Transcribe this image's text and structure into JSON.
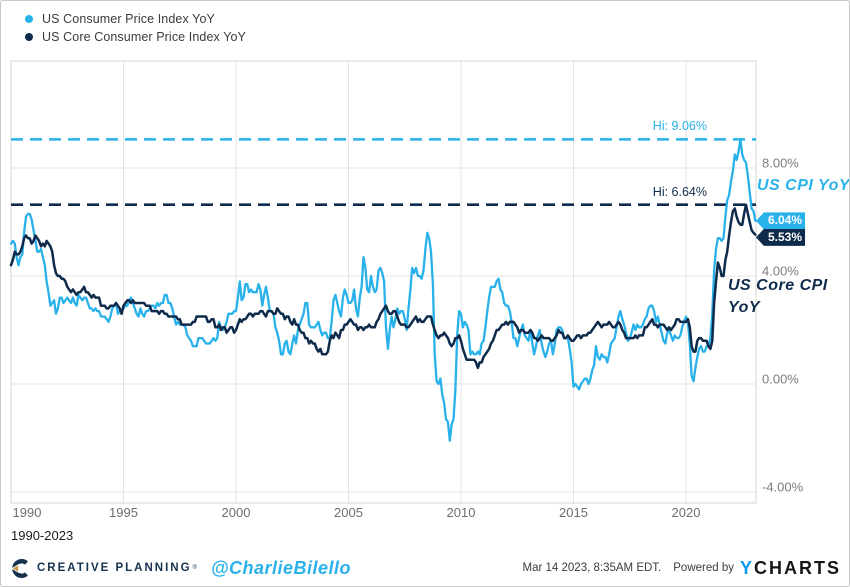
{
  "legend": {
    "items": [
      {
        "label": "US Consumer Price Index YoY",
        "color": "#29b1ea"
      },
      {
        "label": "US Core Consumer Price Index YoY",
        "color": "#0f2b4c"
      }
    ]
  },
  "chart_data": {
    "type": "line",
    "grid": true,
    "x_range": [
      1990,
      2023.17
    ],
    "y_range": [
      -4.3,
      12
    ],
    "x_ticks": [
      {
        "label": "1990",
        "value": 1990
      },
      {
        "label": "1995",
        "value": 1995
      },
      {
        "label": "2000",
        "value": 2000
      },
      {
        "label": "2005",
        "value": 2005
      },
      {
        "label": "2010",
        "value": 2010
      },
      {
        "label": "2015",
        "value": 2015
      },
      {
        "label": "2020",
        "value": 2020
      }
    ],
    "y_ticks": [
      {
        "label": "8.00%",
        "value": 8
      },
      {
        "label": "4.00%",
        "value": 4
      },
      {
        "label": "0.00%",
        "value": 0
      },
      {
        "label": "-4.00%",
        "value": -4
      }
    ],
    "hi_lines": [
      {
        "label": "Hi: 9.06%",
        "value": 9.06,
        "color": "#29b1ea"
      },
      {
        "label": "Hi: 6.64%",
        "value": 6.64,
        "color": "#0f2b4c"
      }
    ],
    "end_labels": [
      {
        "text": "6.04%",
        "value": 6.04,
        "color": "#29b1ea"
      },
      {
        "text": "5.53%",
        "value": 5.53,
        "color": "#0f2b4c"
      }
    ],
    "annotations": {
      "cpi": "US CPI YoY",
      "core_line1": "US Core CPI",
      "core_line2": "YoY"
    },
    "series": [
      {
        "name": "US Consumer Price Index YoY",
        "color": "#29b1ea",
        "start": "1990-01",
        "freq": "monthly",
        "values": [
          5.2,
          5.3,
          5.2,
          4.7,
          4.4,
          4.7,
          4.8,
          5.6,
          6.2,
          6.3,
          6.3,
          6.1,
          5.7,
          5.3,
          4.9,
          4.9,
          5.0,
          4.7,
          4.4,
          3.8,
          3.4,
          2.9,
          3.0,
          3.1,
          2.6,
          2.8,
          3.2,
          3.2,
          3.0,
          3.1,
          3.2,
          3.1,
          3.0,
          3.2,
          3.0,
          2.9,
          3.3,
          3.2,
          3.1,
          3.2,
          3.2,
          3.0,
          2.8,
          2.8,
          2.7,
          2.8,
          2.7,
          2.7,
          2.5,
          2.5,
          2.5,
          2.4,
          2.3,
          2.5,
          2.8,
          2.9,
          3.0,
          2.6,
          2.7,
          2.7,
          2.8,
          2.9,
          2.9,
          3.1,
          3.2,
          3.0,
          2.8,
          2.6,
          2.5,
          2.8,
          2.6,
          2.5,
          2.7,
          2.7,
          2.8,
          2.9,
          2.9,
          2.8,
          3.0,
          2.9,
          3.0,
          3.0,
          3.3,
          3.3,
          3.0,
          3.0,
          2.8,
          2.5,
          2.2,
          2.3,
          2.2,
          2.2,
          2.2,
          2.1,
          1.8,
          1.7,
          1.6,
          1.4,
          1.4,
          1.4,
          1.7,
          1.7,
          1.7,
          1.6,
          1.5,
          1.5,
          1.5,
          1.6,
          1.7,
          1.6,
          1.7,
          2.3,
          2.1,
          2.0,
          2.1,
          2.3,
          2.6,
          2.6,
          2.6,
          2.7,
          2.7,
          3.2,
          3.8,
          3.1,
          3.2,
          3.7,
          3.7,
          3.4,
          3.5,
          3.4,
          3.4,
          3.4,
          3.7,
          3.5,
          2.9,
          3.3,
          3.6,
          3.2,
          2.7,
          2.7,
          2.6,
          2.1,
          1.9,
          1.6,
          1.1,
          1.1,
          1.5,
          1.6,
          1.2,
          1.1,
          1.5,
          1.8,
          1.5,
          2.0,
          2.2,
          2.4,
          2.6,
          3.0,
          3.0,
          2.2,
          2.1,
          2.1,
          2.1,
          2.2,
          2.3,
          2.0,
          1.8,
          1.9,
          1.9,
          1.7,
          1.7,
          2.3,
          3.1,
          3.3,
          3.0,
          2.7,
          2.5,
          3.2,
          3.5,
          3.3,
          3.0,
          3.0,
          3.1,
          3.5,
          2.8,
          2.5,
          3.2,
          3.6,
          4.7,
          4.3,
          3.5,
          3.4,
          4.0,
          3.6,
          3.4,
          3.5,
          4.2,
          4.3,
          4.1,
          3.8,
          2.1,
          1.3,
          2.0,
          2.5,
          2.1,
          2.4,
          2.8,
          2.6,
          2.7,
          2.7,
          2.4,
          2.0,
          2.8,
          3.5,
          4.3,
          4.1,
          4.3,
          4.0,
          4.0,
          3.9,
          4.2,
          5.0,
          5.6,
          5.4,
          4.9,
          3.7,
          1.1,
          0.1,
          0.0,
          0.2,
          -0.4,
          -0.7,
          -1.3,
          -1.4,
          -2.1,
          -1.5,
          -1.3,
          -0.2,
          1.8,
          2.7,
          2.6,
          2.1,
          2.3,
          2.2,
          2.0,
          1.1,
          1.2,
          1.1,
          1.1,
          1.2,
          1.1,
          1.5,
          1.6,
          2.1,
          2.7,
          3.2,
          3.6,
          3.6,
          3.6,
          3.8,
          3.9,
          3.5,
          3.4,
          3.0,
          2.9,
          2.9,
          2.7,
          2.3,
          1.7,
          1.7,
          1.4,
          1.7,
          2.0,
          2.2,
          1.8,
          1.7,
          1.6,
          2.0,
          1.5,
          1.1,
          1.4,
          1.8,
          2.0,
          1.5,
          1.2,
          1.0,
          1.2,
          1.5,
          1.6,
          1.1,
          1.5,
          2.0,
          2.1,
          2.1,
          2.0,
          1.7,
          1.7,
          1.7,
          1.3,
          0.8,
          -0.1,
          0.0,
          -0.1,
          -0.2,
          0.0,
          0.1,
          0.2,
          0.2,
          0.0,
          0.2,
          0.5,
          0.7,
          1.4,
          1.0,
          0.9,
          1.1,
          1.0,
          1.0,
          0.8,
          1.1,
          1.5,
          1.6,
          1.7,
          2.1,
          2.5,
          2.7,
          2.4,
          2.2,
          1.9,
          1.6,
          1.7,
          1.9,
          2.2,
          2.0,
          2.2,
          2.1,
          2.1,
          2.2,
          2.4,
          2.5,
          2.8,
          2.9,
          2.9,
          2.7,
          2.3,
          2.5,
          2.2,
          1.9,
          1.6,
          1.5,
          1.9,
          2.0,
          1.8,
          1.6,
          1.8,
          1.7,
          1.7,
          1.8,
          2.1,
          2.3,
          2.5,
          2.3,
          1.5,
          0.3,
          0.1,
          0.6,
          1.0,
          1.3,
          1.4,
          1.2,
          1.2,
          1.4,
          1.4,
          1.7,
          2.6,
          4.2,
          5.0,
          5.4,
          5.4,
          5.3,
          5.4,
          6.2,
          6.8,
          7.0,
          7.5,
          7.9,
          8.5,
          8.3,
          8.6,
          9.06,
          8.5,
          8.3,
          8.2,
          7.7,
          7.1,
          6.5,
          6.4,
          6.04
        ]
      },
      {
        "name": "US Core Consumer Price Index YoY",
        "color": "#0f2b4c",
        "start": "1990-01",
        "freq": "monthly",
        "values": [
          4.4,
          4.6,
          4.9,
          4.8,
          4.8,
          4.9,
          5.1,
          5.4,
          5.5,
          5.4,
          5.4,
          5.2,
          5.3,
          5.5,
          5.4,
          5.3,
          5.1,
          5.2,
          5.1,
          5.3,
          5.2,
          5.1,
          4.9,
          4.4,
          4.1,
          4.0,
          4.0,
          3.9,
          3.9,
          3.8,
          3.6,
          3.5,
          3.4,
          3.5,
          3.4,
          3.3,
          3.4,
          3.4,
          3.5,
          3.6,
          3.4,
          3.4,
          3.3,
          3.2,
          3.3,
          3.2,
          3.2,
          3.2,
          2.9,
          2.9,
          2.9,
          2.8,
          2.8,
          2.9,
          2.9,
          2.9,
          3.0,
          2.9,
          2.8,
          2.6,
          2.9,
          3.0,
          3.1,
          3.1,
          3.0,
          3.1,
          3.0,
          3.0,
          3.0,
          3.0,
          3.0,
          3.0,
          2.9,
          2.9,
          2.9,
          2.7,
          2.7,
          2.7,
          2.7,
          2.6,
          2.7,
          2.7,
          2.6,
          2.6,
          2.5,
          2.5,
          2.5,
          2.5,
          2.5,
          2.4,
          2.4,
          2.2,
          2.2,
          2.2,
          2.2,
          2.2,
          2.2,
          2.3,
          2.3,
          2.5,
          2.5,
          2.5,
          2.5,
          2.5,
          2.5,
          2.3,
          2.3,
          2.4,
          2.4,
          2.1,
          2.1,
          2.2,
          2.0,
          2.1,
          2.1,
          1.9,
          2.0,
          2.1,
          2.1,
          1.9,
          2.0,
          2.2,
          2.4,
          2.3,
          2.4,
          2.4,
          2.5,
          2.6,
          2.6,
          2.5,
          2.6,
          2.6,
          2.6,
          2.7,
          2.7,
          2.6,
          2.5,
          2.7,
          2.7,
          2.7,
          2.6,
          2.6,
          2.8,
          2.7,
          2.6,
          2.6,
          2.4,
          2.5,
          2.5,
          2.3,
          2.2,
          2.4,
          2.2,
          2.2,
          2.0,
          1.9,
          1.9,
          1.7,
          1.7,
          1.5,
          1.6,
          1.5,
          1.5,
          1.3,
          1.2,
          1.3,
          1.1,
          1.1,
          1.1,
          1.2,
          1.6,
          1.8,
          1.7,
          1.9,
          1.8,
          1.7,
          2.0,
          2.0,
          2.2,
          2.2,
          2.3,
          2.4,
          2.3,
          2.2,
          2.2,
          2.0,
          2.1,
          2.1,
          2.0,
          2.1,
          2.1,
          2.2,
          2.1,
          2.1,
          2.1,
          2.3,
          2.4,
          2.6,
          2.7,
          2.8,
          2.9,
          2.7,
          2.6,
          2.6,
          2.7,
          2.7,
          2.5,
          2.3,
          2.2,
          2.2,
          2.2,
          2.1,
          2.1,
          2.2,
          2.3,
          2.4,
          2.5,
          2.3,
          2.4,
          2.3,
          2.3,
          2.4,
          2.5,
          2.5,
          2.5,
          2.2,
          2.0,
          1.8,
          1.7,
          1.8,
          1.8,
          1.9,
          1.8,
          1.7,
          1.5,
          1.4,
          1.5,
          1.7,
          1.7,
          1.8,
          1.6,
          1.3,
          1.1,
          0.9,
          0.9,
          0.9,
          0.9,
          0.9,
          0.8,
          0.6,
          0.8,
          0.8,
          1.0,
          1.1,
          1.2,
          1.3,
          1.5,
          1.6,
          1.8,
          2.0,
          2.0,
          2.1,
          2.2,
          2.2,
          2.3,
          2.2,
          2.3,
          2.3,
          2.3,
          2.2,
          2.1,
          1.9,
          2.0,
          2.0,
          1.9,
          1.9,
          1.9,
          2.0,
          1.9,
          1.7,
          1.7,
          1.6,
          1.7,
          1.8,
          1.7,
          1.7,
          1.7,
          1.7,
          1.6,
          1.6,
          1.7,
          1.8,
          2.0,
          1.9,
          1.9,
          1.7,
          1.7,
          1.8,
          1.7,
          1.6,
          1.6,
          1.7,
          1.8,
          1.8,
          1.7,
          1.8,
          1.8,
          1.8,
          1.9,
          1.9,
          2.0,
          2.1,
          2.2,
          2.3,
          2.2,
          2.1,
          2.2,
          2.2,
          2.2,
          2.3,
          2.2,
          2.1,
          2.1,
          2.2,
          2.3,
          2.2,
          2.0,
          1.9,
          1.7,
          1.7,
          1.7,
          1.7,
          1.7,
          1.8,
          1.7,
          1.8,
          1.8,
          1.8,
          2.1,
          2.1,
          2.2,
          2.3,
          2.4,
          2.2,
          2.2,
          2.1,
          2.2,
          2.2,
          2.2,
          2.1,
          2.0,
          2.1,
          2.0,
          2.1,
          2.2,
          2.4,
          2.4,
          2.3,
          2.3,
          2.3,
          2.3,
          2.4,
          2.1,
          1.4,
          1.2,
          1.2,
          1.6,
          1.7,
          1.7,
          1.6,
          1.6,
          1.6,
          1.4,
          1.3,
          1.6,
          3.0,
          3.8,
          4.5,
          4.3,
          4.0,
          4.0,
          4.6,
          4.9,
          5.5,
          6.0,
          6.4,
          6.5,
          6.2,
          6.0,
          5.9,
          5.9,
          6.3,
          6.64,
          6.3,
          6.0,
          5.7,
          5.6,
          5.53
        ]
      }
    ]
  },
  "range_label": "1990-2023",
  "footer": {
    "brand": "CREATIVE PLANNING",
    "brand_reg": "®",
    "handle": "@CharlieBilello",
    "timestamp": "Mar 14 2023, 8:35AM EDT.",
    "powered_by": "Powered by",
    "logo_y": "Y",
    "logo_charts": "CHARTS"
  }
}
